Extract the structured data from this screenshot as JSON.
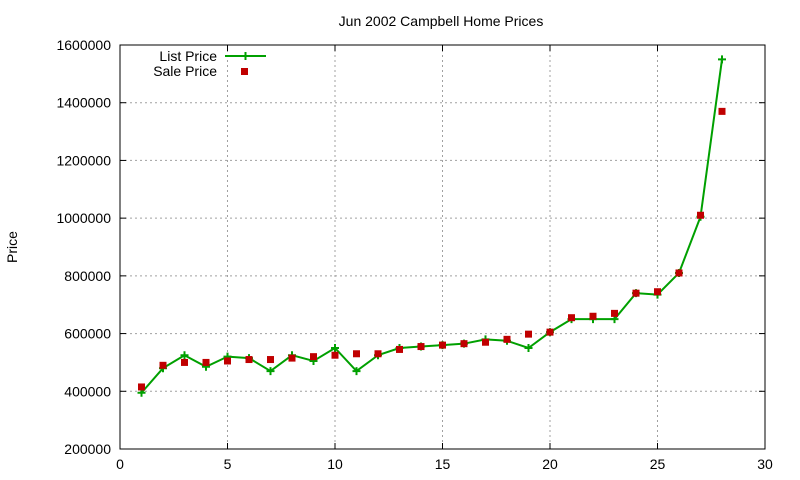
{
  "chart_data": {
    "type": "line",
    "title": "Jun 2002 Campbell Home Prices",
    "xlabel": "",
    "ylabel": "Price",
    "xlim": [
      0,
      30
    ],
    "ylim": [
      200000,
      1600000
    ],
    "xticks": [
      0,
      5,
      10,
      15,
      20,
      25,
      30
    ],
    "yticks": [
      200000,
      400000,
      600000,
      800000,
      1000000,
      1200000,
      1400000,
      1600000
    ],
    "grid": true,
    "legend_position": "top-left",
    "x": [
      1,
      2,
      3,
      4,
      5,
      6,
      7,
      8,
      9,
      10,
      11,
      12,
      13,
      14,
      15,
      16,
      17,
      18,
      19,
      20,
      21,
      22,
      23,
      24,
      25,
      26,
      27,
      28
    ],
    "series": [
      {
        "name": "List Price",
        "style": "lines+points",
        "marker": "plus",
        "color": "#00a000",
        "values": [
          395000,
          480000,
          525000,
          485000,
          520000,
          515000,
          470000,
          525000,
          505000,
          550000,
          470000,
          525000,
          550000,
          555000,
          560000,
          565000,
          580000,
          575000,
          550000,
          605000,
          650000,
          650000,
          650000,
          740000,
          735000,
          810000,
          1005000,
          1550000
        ]
      },
      {
        "name": "Sale Price",
        "style": "points",
        "marker": "square",
        "color": "#c00000",
        "values": [
          415000,
          490000,
          500000,
          500000,
          505000,
          510000,
          510000,
          515000,
          520000,
          525000,
          530000,
          530000,
          545000,
          555000,
          560000,
          565000,
          570000,
          580000,
          598000,
          605000,
          655000,
          660000,
          670000,
          740000,
          745000,
          810000,
          1010000,
          1370000
        ]
      }
    ]
  }
}
